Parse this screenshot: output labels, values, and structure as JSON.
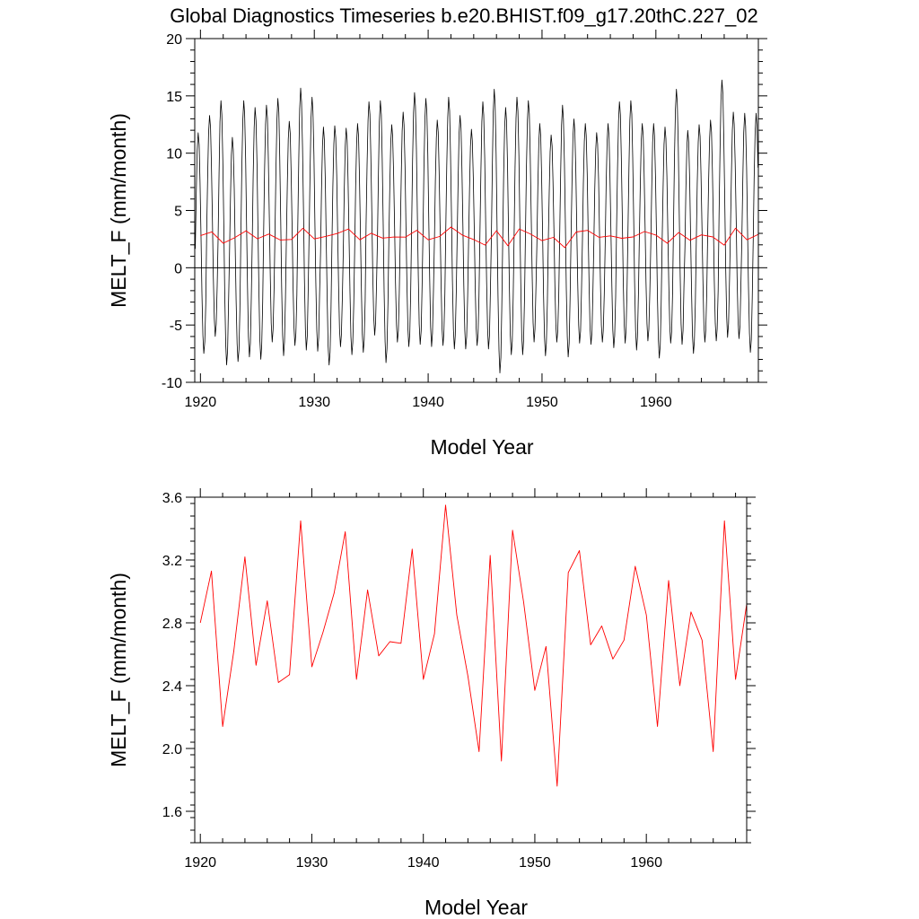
{
  "title": "Global Diagnostics Timeseries b.e20.BHIST.f09_g17.20thC.227_02",
  "chart_data": [
    {
      "type": "line",
      "xlabel": "Model Year",
      "ylabel": "MELT_F (mm/month)",
      "xlim": [
        1919.5,
        1969.0
      ],
      "ylim": [
        -10,
        20
      ],
      "xticks": [
        1920,
        1930,
        1940,
        1950,
        1960
      ],
      "yticks": [
        -10,
        -5,
        0,
        5,
        10,
        15,
        20
      ],
      "ytick_labels": [
        "-10",
        "-5",
        "0",
        "5",
        "10",
        "15",
        "20"
      ],
      "zero_line": true,
      "series": [
        {
          "color": "#000000",
          "note": "monthly values, annual cycle",
          "annual_max": [
            11.8,
            13.3,
            14.6,
            11.4,
            14.6,
            14.0,
            14.2,
            14.8,
            12.8,
            15.7,
            14.9,
            12.3,
            12.4,
            12.2,
            12.6,
            14.5,
            14.6,
            12.5,
            13.6,
            15.3,
            14.8,
            12.9,
            14.9,
            13.3,
            12.1,
            14.5,
            15.6,
            14.0,
            14.9,
            14.6,
            12.6,
            11.6,
            14.2,
            13.0,
            12.6,
            11.8,
            12.6,
            14.5,
            14.6,
            12.6,
            12.6,
            12.3,
            15.6,
            12.0,
            12.5,
            12.9,
            16.4,
            13.6,
            13.5,
            13.5
          ],
          "annual_min": [
            -7.5,
            -6.0,
            -8.5,
            -8.2,
            -7.8,
            -8.0,
            -6.5,
            -7.7,
            -6.8,
            -7.2,
            -7.3,
            -8.5,
            -6.9,
            -7.6,
            -7.4,
            -5.9,
            -8.3,
            -6.5,
            -6.9,
            -6.7,
            -6.9,
            -6.8,
            -7.1,
            -7.1,
            -6.8,
            -7.1,
            -9.2,
            -7.6,
            -7.6,
            -6.5,
            -7.7,
            -6.5,
            -7.8,
            -6.6,
            -6.7,
            -6.5,
            -7.0,
            -6.6,
            -7.2,
            -6.4,
            -7.9,
            -6.6,
            -6.7,
            -7.5,
            -6.5,
            -6.4,
            -6.1,
            -6.2,
            -7.4,
            -7.4
          ]
        },
        {
          "color": "#ff0000",
          "note": "annual mean",
          "x": [
            1920,
            1921,
            1922,
            1923,
            1924,
            1925,
            1926,
            1927,
            1928,
            1929,
            1930,
            1931,
            1932,
            1933,
            1934,
            1935,
            1936,
            1937,
            1938,
            1939,
            1940,
            1941,
            1942,
            1943,
            1944,
            1945,
            1946,
            1947,
            1948,
            1949,
            1950,
            1951,
            1952,
            1953,
            1954,
            1955,
            1956,
            1957,
            1958,
            1959,
            1960,
            1961,
            1962,
            1963,
            1964,
            1965,
            1966,
            1967,
            1968,
            1969
          ],
          "values": [
            2.8,
            3.13,
            2.14,
            2.62,
            3.22,
            2.53,
            2.94,
            2.42,
            2.47,
            3.45,
            2.52,
            2.74,
            2.99,
            3.38,
            2.44,
            3.01,
            2.59,
            2.68,
            2.67,
            3.27,
            2.44,
            2.73,
            3.55,
            2.85,
            2.46,
            1.98,
            3.23,
            1.92,
            3.39,
            2.93,
            2.37,
            2.65,
            1.76,
            3.12,
            3.26,
            2.66,
            2.78,
            2.57,
            2.69,
            3.16,
            2.85,
            2.14,
            3.07,
            2.4,
            2.87,
            2.69,
            1.98,
            3.45,
            2.44,
            2.92
          ]
        }
      ]
    },
    {
      "type": "line",
      "xlabel": "Model Year",
      "ylabel": "MELT_F (mm/month)",
      "xlim": [
        1919.5,
        1969.0
      ],
      "ylim": [
        1.4,
        3.6
      ],
      "xticks": [
        1920,
        1930,
        1940,
        1950,
        1960
      ],
      "yticks": [
        1.6,
        2.0,
        2.4,
        2.8,
        3.2,
        3.6
      ],
      "ytick_labels": [
        "1.6",
        "2.0",
        "2.4",
        "2.8",
        "3.2",
        "3.6"
      ],
      "series": [
        {
          "color": "#ff0000",
          "note": "annual mean",
          "x": [
            1920,
            1921,
            1922,
            1923,
            1924,
            1925,
            1926,
            1927,
            1928,
            1929,
            1930,
            1931,
            1932,
            1933,
            1934,
            1935,
            1936,
            1937,
            1938,
            1939,
            1940,
            1941,
            1942,
            1943,
            1944,
            1945,
            1946,
            1947,
            1948,
            1949,
            1950,
            1951,
            1952,
            1953,
            1954,
            1955,
            1956,
            1957,
            1958,
            1959,
            1960,
            1961,
            1962,
            1963,
            1964,
            1965,
            1966,
            1967,
            1968,
            1969
          ],
          "values": [
            2.8,
            3.13,
            2.14,
            2.62,
            3.22,
            2.53,
            2.94,
            2.42,
            2.47,
            3.45,
            2.52,
            2.74,
            2.99,
            3.38,
            2.44,
            3.01,
            2.59,
            2.68,
            2.67,
            3.27,
            2.44,
            2.73,
            3.55,
            2.85,
            2.46,
            1.98,
            3.23,
            1.92,
            3.39,
            2.93,
            2.37,
            2.65,
            1.76,
            3.12,
            3.26,
            2.66,
            2.78,
            2.57,
            2.69,
            3.16,
            2.85,
            2.14,
            3.07,
            2.4,
            2.87,
            2.69,
            1.98,
            3.45,
            2.44,
            2.92
          ]
        }
      ]
    }
  ]
}
